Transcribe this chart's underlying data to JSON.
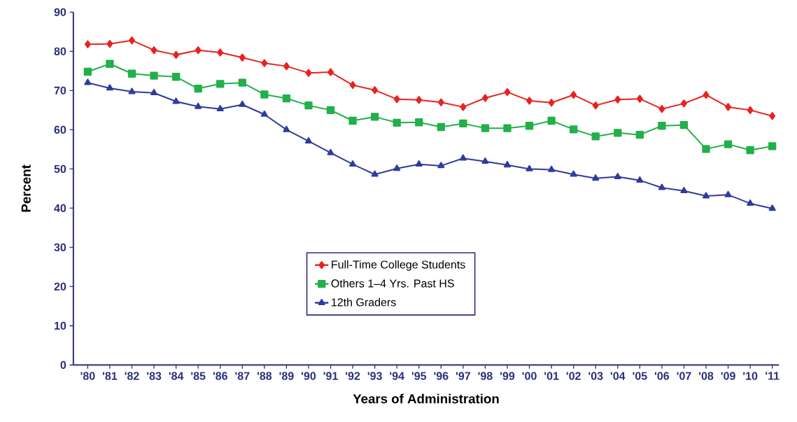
{
  "chart_data": {
    "type": "line",
    "xlabel": "Years of Administration",
    "ylabel": "Percent",
    "categories": [
      "'80",
      "'81",
      "'82",
      "'83",
      "'84",
      "'85",
      "'86",
      "'87",
      "'88",
      "'89",
      "'90",
      "'91",
      "'92",
      "'93",
      "'94",
      "'95",
      "'96",
      "'97",
      "'98",
      "'99",
      "'00",
      "'01",
      "'02",
      "'03",
      "'04",
      "'05",
      "'06",
      "'07",
      "'08",
      "'09",
      "'10",
      "'11"
    ],
    "ylim": [
      0,
      90
    ],
    "yticks": [
      0,
      10,
      20,
      30,
      40,
      50,
      60,
      70,
      80,
      90
    ],
    "legend": "bottom",
    "grid": false,
    "line_style": "solid",
    "series": [
      {
        "name": "Full-Time College Students",
        "color": "#e8231f",
        "marker": "diamond",
        "values": [
          81.8,
          81.9,
          82.8,
          80.3,
          79.1,
          80.3,
          79.7,
          78.4,
          77.0,
          76.2,
          74.5,
          74.7,
          71.4,
          70.1,
          67.8,
          67.6,
          67.0,
          65.8,
          68.1,
          69.6,
          67.4,
          66.9,
          68.9,
          66.2,
          67.7,
          67.9,
          65.3,
          66.7,
          68.9,
          65.8,
          65.0,
          63.5
        ]
      },
      {
        "name": "Others 1–4 Yrs. Past HS",
        "color": "#22b04a",
        "marker": "square",
        "values": [
          74.8,
          76.8,
          74.3,
          73.8,
          73.5,
          70.5,
          71.7,
          72.0,
          69.0,
          68.0,
          66.2,
          65.0,
          62.3,
          63.3,
          61.8,
          61.9,
          60.7,
          61.6,
          60.4,
          60.4,
          61.0,
          62.3,
          60.1,
          58.3,
          59.2,
          58.7,
          61.0,
          61.2,
          55.1,
          56.3,
          54.8,
          55.8
        ]
      },
      {
        "name": "12th Graders",
        "color": "#2e3c9c",
        "marker": "triangle",
        "values": [
          72.0,
          70.6,
          69.7,
          69.4,
          67.2,
          65.9,
          65.3,
          66.4,
          63.9,
          60.0,
          57.1,
          54.1,
          51.2,
          48.6,
          50.1,
          51.2,
          50.8,
          52.7,
          51.9,
          51.0,
          50.0,
          49.8,
          48.6,
          47.6,
          48.0,
          47.1,
          45.2,
          44.4,
          43.1,
          43.4,
          41.2,
          39.9
        ]
      }
    ]
  }
}
